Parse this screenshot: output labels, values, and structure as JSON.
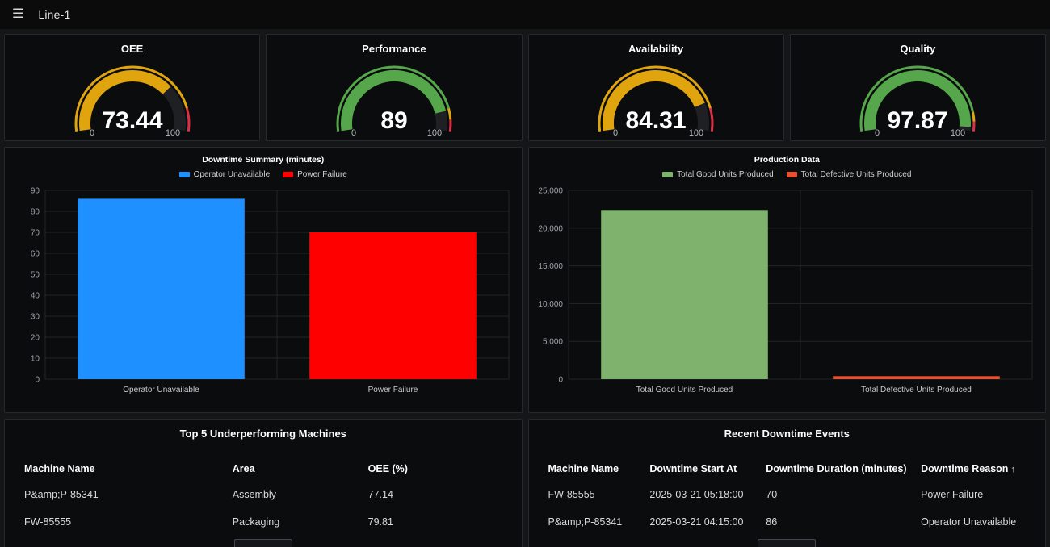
{
  "navbar": {
    "title": "Line-1"
  },
  "gauges": [
    {
      "title": "OEE",
      "value": "73.44",
      "min": "0",
      "max": "100",
      "fraction": 0.7344,
      "color": "#E0A50E",
      "thresholds": [
        {
          "color": "#E0A50E",
          "to": 0.88
        },
        {
          "color": "#E02F44",
          "to": 1
        }
      ]
    },
    {
      "title": "Performance",
      "value": "89",
      "min": "0",
      "max": "100",
      "fraction": 0.89,
      "color": "#56A64B",
      "thresholds": [
        {
          "color": "#56A64B",
          "to": 0.88
        },
        {
          "color": "#E0A50E",
          "to": 0.94
        },
        {
          "color": "#E02F44",
          "to": 1
        }
      ]
    },
    {
      "title": "Availability",
      "value": "84.31",
      "min": "0",
      "max": "100",
      "fraction": 0.8431,
      "color": "#E0A50E",
      "thresholds": [
        {
          "color": "#E0A50E",
          "to": 0.88
        },
        {
          "color": "#E02F44",
          "to": 1
        }
      ]
    },
    {
      "title": "Quality",
      "value": "97.87",
      "min": "0",
      "max": "100",
      "fraction": 0.9787,
      "color": "#56A64B",
      "thresholds": [
        {
          "color": "#56A64B",
          "to": 0.9
        },
        {
          "color": "#E0A50E",
          "to": 0.95
        },
        {
          "color": "#E02F44",
          "to": 1
        }
      ]
    }
  ],
  "chart_data": [
    {
      "type": "bar",
      "title": "Downtime Summary (minutes)",
      "categories": [
        "Operator Unavailable",
        "Power Failure"
      ],
      "values": [
        86,
        70
      ],
      "colors": [
        "#1E90FF",
        "#FF0000"
      ],
      "legend": [
        "Operator Unavailable",
        "Power Failure"
      ],
      "xlabel": "",
      "ylabel": "",
      "ylim": [
        0,
        90
      ],
      "ytick_step": 10,
      "grid": true,
      "legend_position": "top"
    },
    {
      "type": "bar",
      "title": "Production Data",
      "categories": [
        "Total Good Units Produced",
        "Total Defective Units Produced"
      ],
      "values": [
        22400,
        400
      ],
      "colors": [
        "#7EB26D",
        "#E8502E"
      ],
      "legend": [
        "Total Good Units Produced",
        "Total Defective Units Produced"
      ],
      "xlabel": "",
      "ylabel": "",
      "ylim": [
        0,
        25000
      ],
      "ytick_step": 5000,
      "grid": true,
      "legend_position": "top"
    }
  ],
  "tables": [
    {
      "title": "Top 5 Underperforming Machines",
      "columns": [
        "Machine Name",
        "Area",
        "OEE (%)"
      ],
      "col_widths": [
        "43%",
        "28%",
        "29%"
      ],
      "sort_column": -1,
      "sort_indicator": "",
      "rows": [
        [
          "P&amp;P-85341",
          "Assembly",
          "77.14"
        ],
        [
          "FW-85555",
          "Packaging",
          "79.81"
        ]
      ]
    },
    {
      "title": "Recent Downtime Events",
      "columns": [
        "Machine Name",
        "Downtime Start At",
        "Downtime Duration (minutes)",
        "Downtime Reason"
      ],
      "col_widths": [
        "21%",
        "24%",
        "32%",
        "23%"
      ],
      "sort_column": 3,
      "sort_indicator": "↑",
      "rows": [
        [
          "FW-85555",
          "2025-03-21 05:18:00",
          "70",
          "Power Failure"
        ],
        [
          "P&amp;P-85341",
          "2025-03-21 04:15:00",
          "86",
          "Operator Unavailable"
        ]
      ]
    }
  ]
}
